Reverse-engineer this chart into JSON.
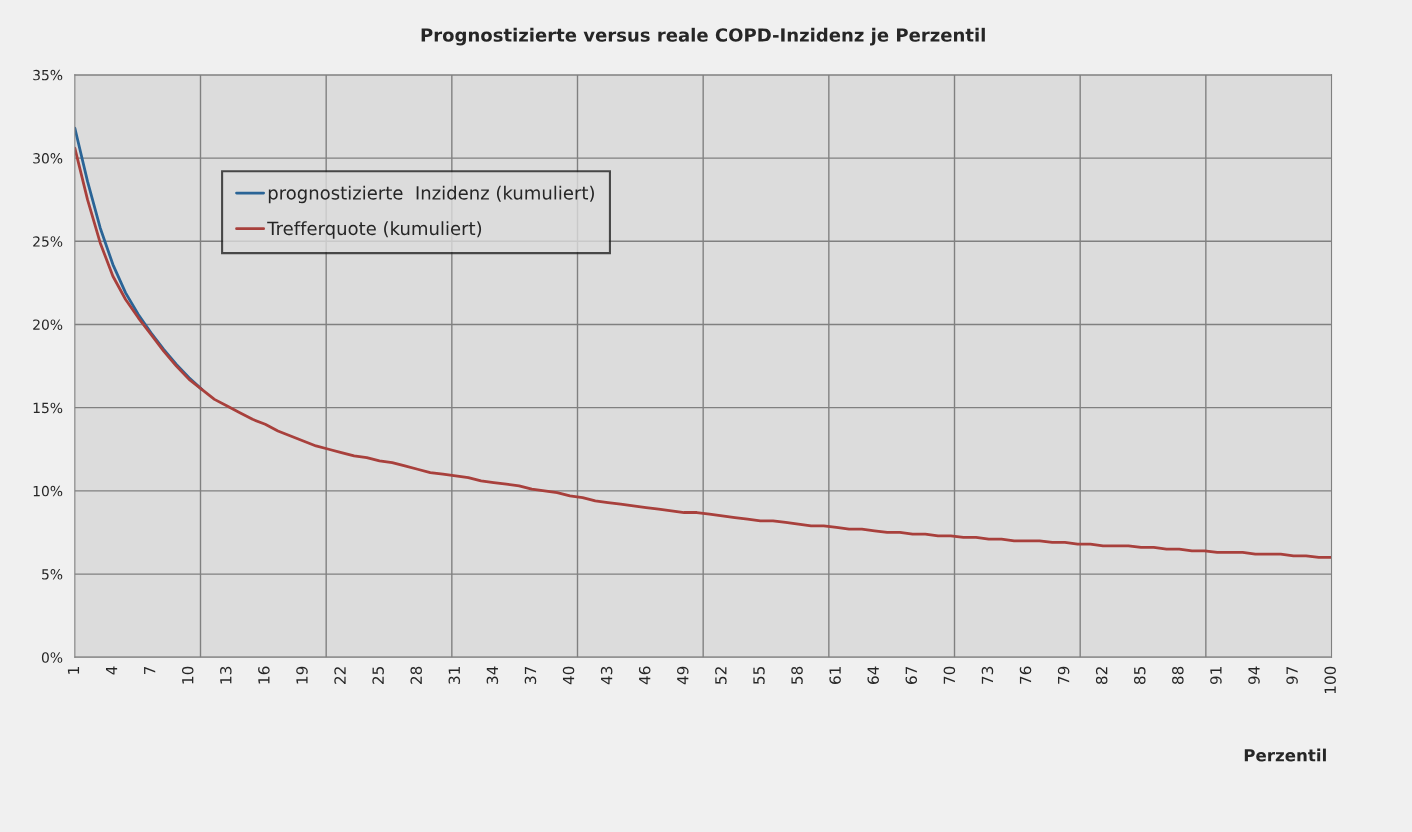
{
  "chart_data": {
    "type": "line",
    "title": "Prognostizierte versus reale COPD-Inzidenz je Perzentil",
    "xlabel": "Perzentil",
    "x": [
      1,
      2,
      3,
      4,
      5,
      6,
      7,
      8,
      9,
      10,
      11,
      12,
      13,
      14,
      15,
      16,
      17,
      18,
      19,
      20,
      21,
      22,
      23,
      24,
      25,
      26,
      27,
      28,
      29,
      30,
      31,
      32,
      33,
      34,
      35,
      36,
      37,
      38,
      39,
      40,
      41,
      42,
      43,
      44,
      45,
      46,
      47,
      48,
      49,
      50,
      51,
      52,
      53,
      54,
      55,
      56,
      57,
      58,
      59,
      60,
      61,
      62,
      63,
      64,
      65,
      66,
      67,
      68,
      69,
      70,
      71,
      72,
      73,
      74,
      75,
      76,
      77,
      78,
      79,
      80,
      81,
      82,
      83,
      84,
      85,
      86,
      87,
      88,
      89,
      90,
      91,
      92,
      93,
      94,
      95,
      96,
      97,
      98,
      99,
      100
    ],
    "series": [
      {
        "name": "prognostizierte  Inzidenz (kumuliert)",
        "color": "#2a6496",
        "values": [
          31.8,
          28.6,
          25.8,
          23.6,
          21.9,
          20.6,
          19.5,
          18.5,
          17.6,
          16.8,
          16.1,
          null,
          null,
          null,
          null,
          null,
          null,
          null,
          null,
          null,
          null,
          null,
          null,
          null,
          null,
          null,
          null,
          null,
          null,
          null,
          null,
          null,
          null,
          null,
          null,
          null,
          null,
          null,
          null,
          null,
          null,
          null,
          null,
          null,
          null,
          null,
          null,
          null,
          null,
          null,
          null,
          null,
          null,
          null,
          null,
          null,
          null,
          null,
          null,
          null,
          null,
          null,
          null,
          null,
          null,
          null,
          null,
          null,
          null,
          null,
          null,
          null,
          null,
          null,
          null,
          null,
          null,
          null,
          null,
          null,
          null,
          null,
          null,
          null,
          null,
          null,
          null,
          null,
          null,
          null,
          null,
          null,
          null,
          null,
          null,
          null,
          null,
          null,
          null,
          null
        ]
      },
      {
        "name": "Trefferquote (kumuliert)",
        "color": "#a8403c",
        "values": [
          30.6,
          27.5,
          24.9,
          22.9,
          21.5,
          20.4,
          19.4,
          18.4,
          17.5,
          16.7,
          16.1,
          15.5,
          15.1,
          14.7,
          14.3,
          14.0,
          13.6,
          13.3,
          13.0,
          12.7,
          12.5,
          12.3,
          12.1,
          12.0,
          11.8,
          11.7,
          11.5,
          11.3,
          11.1,
          11.0,
          10.9,
          10.8,
          10.6,
          10.5,
          10.4,
          10.3,
          10.1,
          10.0,
          9.9,
          9.7,
          9.6,
          9.4,
          9.3,
          9.2,
          9.1,
          9.0,
          8.9,
          8.8,
          8.7,
          8.7,
          8.6,
          8.5,
          8.4,
          8.3,
          8.2,
          8.2,
          8.1,
          8.0,
          7.9,
          7.9,
          7.8,
          7.7,
          7.7,
          7.6,
          7.5,
          7.5,
          7.4,
          7.4,
          7.3,
          7.3,
          7.2,
          7.2,
          7.1,
          7.1,
          7.0,
          7.0,
          7.0,
          6.9,
          6.9,
          6.8,
          6.8,
          6.7,
          6.7,
          6.7,
          6.6,
          6.6,
          6.5,
          6.5,
          6.4,
          6.4,
          6.3,
          6.3,
          6.3,
          6.2,
          6.2,
          6.2,
          6.1,
          6.1,
          6.0,
          6.0
        ]
      }
    ],
    "xlim": [
      1,
      100
    ],
    "xticks": [
      1,
      4,
      7,
      10,
      13,
      16,
      19,
      22,
      25,
      28,
      31,
      34,
      37,
      40,
      43,
      46,
      49,
      52,
      55,
      58,
      61,
      64,
      67,
      70,
      73,
      76,
      79,
      82,
      85,
      88,
      91,
      94,
      97,
      100
    ],
    "ylim": [
      0,
      35
    ],
    "yticks": [
      {
        "value": 0,
        "label": "0%"
      },
      {
        "value": 5,
        "label": "5%"
      },
      {
        "value": 10,
        "label": "10%"
      },
      {
        "value": 15,
        "label": "15%"
      },
      {
        "value": 20,
        "label": "20%"
      },
      {
        "value": 25,
        "label": "25%"
      },
      {
        "value": 30,
        "label": "30%"
      },
      {
        "value": 35,
        "label": "35%"
      }
    ],
    "grid": true,
    "legend": "top left",
    "marker": "none",
    "line_style": "solid"
  }
}
